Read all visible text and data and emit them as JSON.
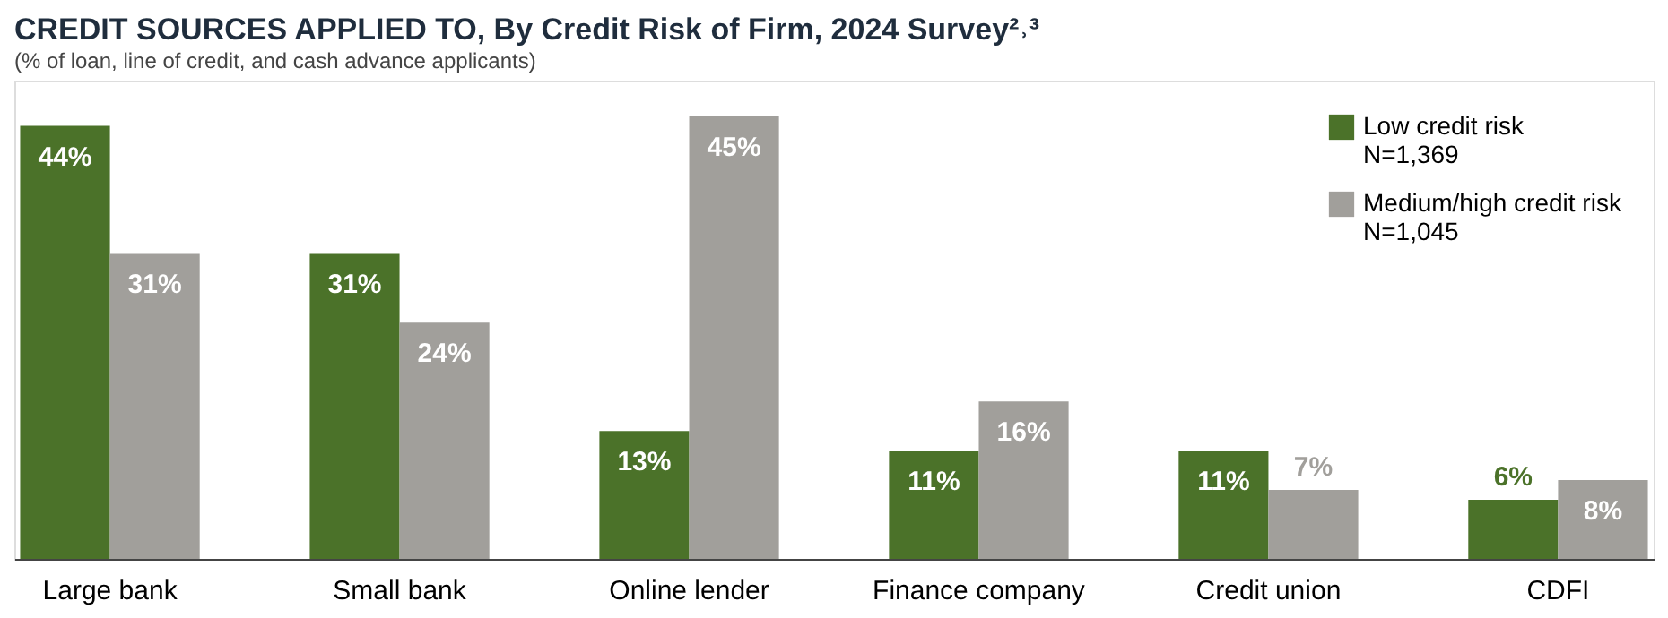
{
  "chart_data": {
    "type": "bar",
    "title": "CREDIT SOURCES APPLIED TO, By Credit Risk of Firm, 2024 Survey²˒³",
    "subtitle": "(% of loan, line of credit, and cash advance applicants)",
    "categories": [
      "Large bank",
      "Small bank",
      "Online lender",
      "Finance company",
      "Credit union",
      "CDFI"
    ],
    "series": [
      {
        "name": "Low credit risk\nN=1,369",
        "color": "#4b7229",
        "values": [
          44,
          31,
          13,
          11,
          11,
          6
        ],
        "value_labels": [
          "44%",
          "31%",
          "13%",
          "11%",
          "11%",
          "6%"
        ]
      },
      {
        "name": "Medium/high credit risk\nN=1,045",
        "color": "#a19f9b",
        "values": [
          31,
          24,
          45,
          16,
          7,
          8
        ],
        "value_labels": [
          "31%",
          "24%",
          "45%",
          "16%",
          "7%",
          "8%"
        ]
      }
    ],
    "legend": "top right"
  }
}
